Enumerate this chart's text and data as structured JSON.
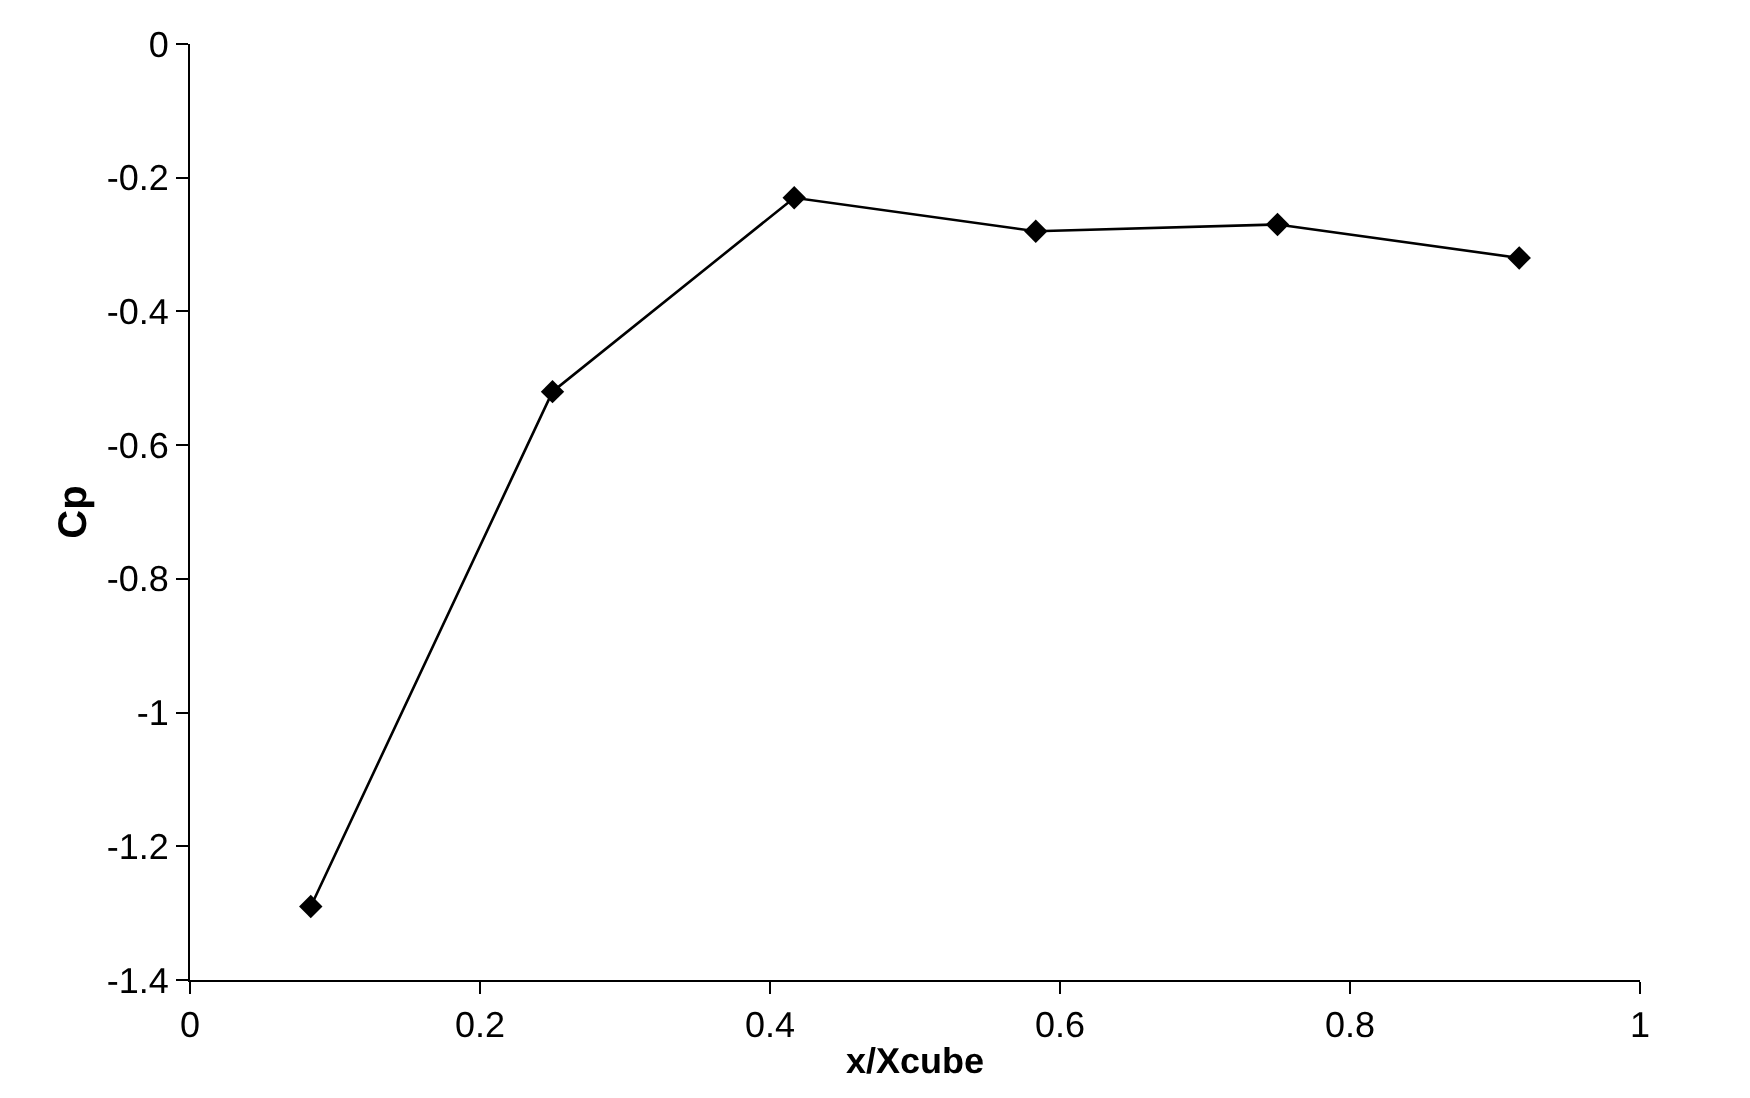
{
  "chart_data": {
    "type": "line",
    "xlabel": "x/Xcube",
    "ylabel": "Cp",
    "x": [
      0.0833,
      0.25,
      0.4167,
      0.5833,
      0.75,
      0.9167
    ],
    "series": [
      {
        "color": "#000000",
        "values": [
          -1.29,
          -0.52,
          -0.23,
          -0.28,
          -0.27,
          -0.32
        ]
      }
    ],
    "xlim": [
      0,
      1
    ],
    "xticks": [
      0,
      0.2,
      0.4,
      0.6,
      0.8,
      1
    ],
    "ylim": [
      -1.4,
      0
    ],
    "yticks": [
      -1.4,
      -1.2,
      -1,
      -0.8,
      -0.6,
      -0.4,
      -0.2,
      0
    ],
    "legend": false,
    "marker": "diamond",
    "line_style": "solid"
  }
}
